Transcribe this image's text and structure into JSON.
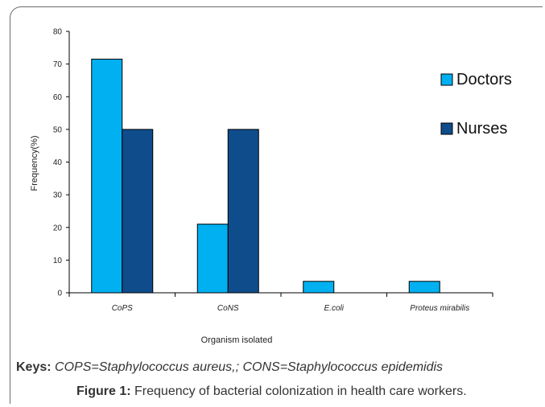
{
  "chart_data": {
    "type": "bar",
    "categories": [
      "CoPS",
      "CoNS",
      "E.coli",
      "Proteus mirabilis"
    ],
    "series": [
      {
        "name": "Doctors",
        "values": [
          71.5,
          21,
          3.5,
          3.5
        ],
        "color": "#00B0F0"
      },
      {
        "name": "Nurses",
        "values": [
          50,
          50,
          0,
          0
        ],
        "color": "#0F4C8C"
      }
    ],
    "title": "",
    "xlabel": "Organism isolated",
    "ylabel": "Frequency(%)",
    "ylim": [
      0,
      80
    ],
    "yticks": [
      0,
      10,
      20,
      30,
      40,
      50,
      60,
      70,
      80
    ],
    "grid": false,
    "legend_position": "right"
  },
  "keys": {
    "lead": "Keys:",
    "text": "COPS=Staphylococcus aureus,; CONS=Staphylococcus epidemidis"
  },
  "caption": {
    "lead": "Figure 1:",
    "text": "Frequency of bacterial colonization in health care workers."
  }
}
